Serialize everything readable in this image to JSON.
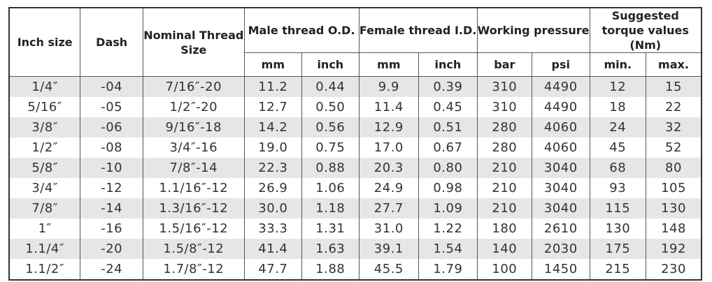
{
  "headers": {
    "inch_size": "Inch size",
    "dash": "Dash",
    "nominal_thread_size": "Nominal Thread Size",
    "male_thread": "Male thread O.D.",
    "female_thread": "Female thread I.D.",
    "working_pressure": "Working pressure",
    "suggested_torque": "Suggested torque values (Nm)",
    "male_mm": "mm",
    "male_inch": "inch",
    "female_mm": "mm",
    "female_inch": "inch",
    "bar": "bar",
    "psi": "psi",
    "min": "min.",
    "max": "max."
  },
  "rows": [
    {
      "inch_size": "1/4″",
      "dash": "-04",
      "thread": "7/16″-20",
      "male_mm": "11.2",
      "male_inch": "0.44",
      "female_mm": "9.9",
      "female_inch": "0.39",
      "bar": "310",
      "psi": "4490",
      "min": "12",
      "max": "15"
    },
    {
      "inch_size": "5/16″",
      "dash": "-05",
      "thread": "1/2″-20",
      "male_mm": "12.7",
      "male_inch": "0.50",
      "female_mm": "11.4",
      "female_inch": "0.45",
      "bar": "310",
      "psi": "4490",
      "min": "18",
      "max": "22"
    },
    {
      "inch_size": "3/8″",
      "dash": "-06",
      "thread": "9/16″-18",
      "male_mm": "14.2",
      "male_inch": "0.56",
      "female_mm": "12.9",
      "female_inch": "0.51",
      "bar": "280",
      "psi": "4060",
      "min": "24",
      "max": "32"
    },
    {
      "inch_size": "1/2″",
      "dash": "-08",
      "thread": "3/4″-16",
      "male_mm": "19.0",
      "male_inch": "0.75",
      "female_mm": "17.0",
      "female_inch": "0.67",
      "bar": "280",
      "psi": "4060",
      "min": "45",
      "max": "52"
    },
    {
      "inch_size": "5/8″",
      "dash": "-10",
      "thread": "7/8″-14",
      "male_mm": "22.3",
      "male_inch": "0.88",
      "female_mm": "20.3",
      "female_inch": "0.80",
      "bar": "210",
      "psi": "3040",
      "min": "68",
      "max": "80"
    },
    {
      "inch_size": "3/4″",
      "dash": "-12",
      "thread": "1.1/16″-12",
      "male_mm": "26.9",
      "male_inch": "1.06",
      "female_mm": "24.9",
      "female_inch": "0.98",
      "bar": "210",
      "psi": "3040",
      "min": "93",
      "max": "105"
    },
    {
      "inch_size": "7/8″",
      "dash": "-14",
      "thread": "1.3/16″-12",
      "male_mm": "30.0",
      "male_inch": "1.18",
      "female_mm": "27.7",
      "female_inch": "1.09",
      "bar": "210",
      "psi": "3040",
      "min": "115",
      "max": "130"
    },
    {
      "inch_size": "1″",
      "dash": "-16",
      "thread": "1.5/16″-12",
      "male_mm": "33.3",
      "male_inch": "1.31",
      "female_mm": "31.0",
      "female_inch": "1.22",
      "bar": "180",
      "psi": "2610",
      "min": "130",
      "max": "148"
    },
    {
      "inch_size": "1.1/4″",
      "dash": "-20",
      "thread": "1.5/8″-12",
      "male_mm": "41.4",
      "male_inch": "1.63",
      "female_mm": "39.1",
      "female_inch": "1.54",
      "bar": "140",
      "psi": "2030",
      "min": "175",
      "max": "192"
    },
    {
      "inch_size": "1.1/2″",
      "dash": "-24",
      "thread": "1.7/8″-12",
      "male_mm": "47.7",
      "male_inch": "1.88",
      "female_mm": "45.5",
      "female_inch": "1.79",
      "bar": "100",
      "psi": "1450",
      "min": "215",
      "max": "230"
    }
  ]
}
